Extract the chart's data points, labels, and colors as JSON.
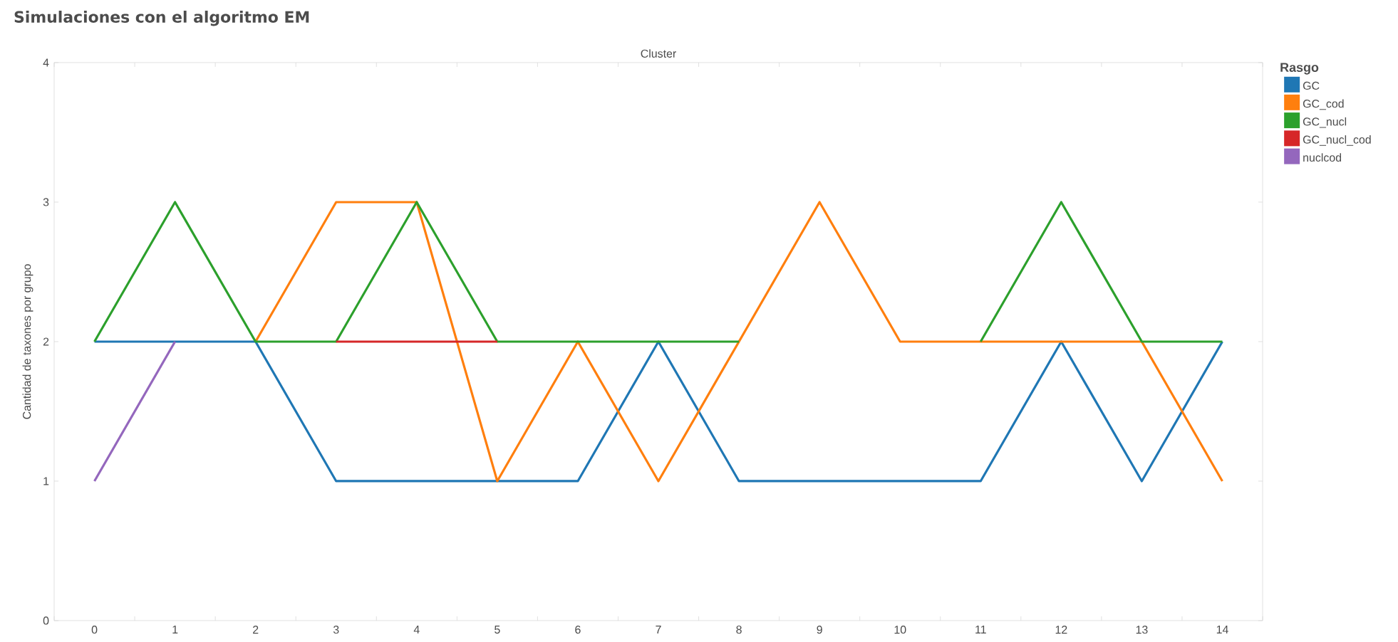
{
  "chart_data": {
    "type": "line",
    "title": "Simulaciones con el algoritmo EM",
    "xlabel": "Cluster",
    "ylabel": "Cantidad de taxones por grupo",
    "legend_title": "Rasgo",
    "legend": "top right",
    "grid": false,
    "line_style": "solid",
    "categories": [
      "0",
      "1",
      "2",
      "3",
      "4",
      "5",
      "6",
      "7",
      "8",
      "9",
      "10",
      "11",
      "12",
      "13",
      "14"
    ],
    "ylim": [
      0,
      4
    ],
    "yticks": [
      0,
      1,
      2,
      3,
      4
    ],
    "series": [
      {
        "name": "GC",
        "color": "#1f77b4",
        "values": [
          2,
          2,
          2,
          1,
          1,
          1,
          1,
          2,
          1,
          1,
          1,
          1,
          2,
          1,
          2
        ]
      },
      {
        "name": "GC_cod",
        "color": "#ff7f0e",
        "values": [
          null,
          null,
          2,
          3,
          3,
          1,
          2,
          1,
          2,
          3,
          2,
          2,
          2,
          2,
          1
        ]
      },
      {
        "name": "GC_nucl",
        "color": "#2ca02c",
        "values": [
          2,
          3,
          2,
          2,
          3,
          2,
          2,
          2,
          2,
          null,
          null,
          2,
          3,
          2,
          2
        ]
      },
      {
        "name": "GC_nucl_cod",
        "color": "#d62728",
        "values": [
          null,
          null,
          null,
          2,
          2,
          2,
          null,
          null,
          null,
          null,
          null,
          null,
          null,
          null,
          null
        ]
      },
      {
        "name": "nuclcod",
        "color": "#9467bd",
        "values": [
          1,
          2,
          null,
          null,
          null,
          null,
          null,
          null,
          null,
          null,
          null,
          null,
          null,
          null,
          null
        ]
      }
    ]
  }
}
